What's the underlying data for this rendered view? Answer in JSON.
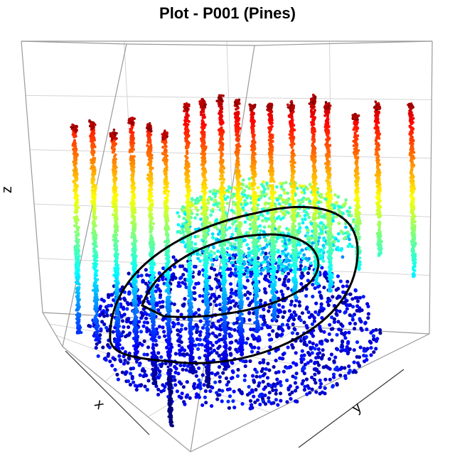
{
  "title": "Plot - P001 (Pines)",
  "chart_data": {
    "type": "scatter",
    "title": "Plot - P001 (Pines)",
    "dimensions": 3,
    "axes": {
      "x_label": "x",
      "y_label": "y",
      "z_label": "z"
    },
    "tick_labels_shown": false,
    "grid": true,
    "bounding_box": true,
    "color_by": "z",
    "colormap": [
      "#00007f",
      "#0000ff",
      "#007fff",
      "#00ffff",
      "#7fff7f",
      "#ffff00",
      "#ff7f00",
      "#ff0000",
      "#7f0000"
    ],
    "stem_count": 18,
    "stem_outline_color": "#000000"
  }
}
